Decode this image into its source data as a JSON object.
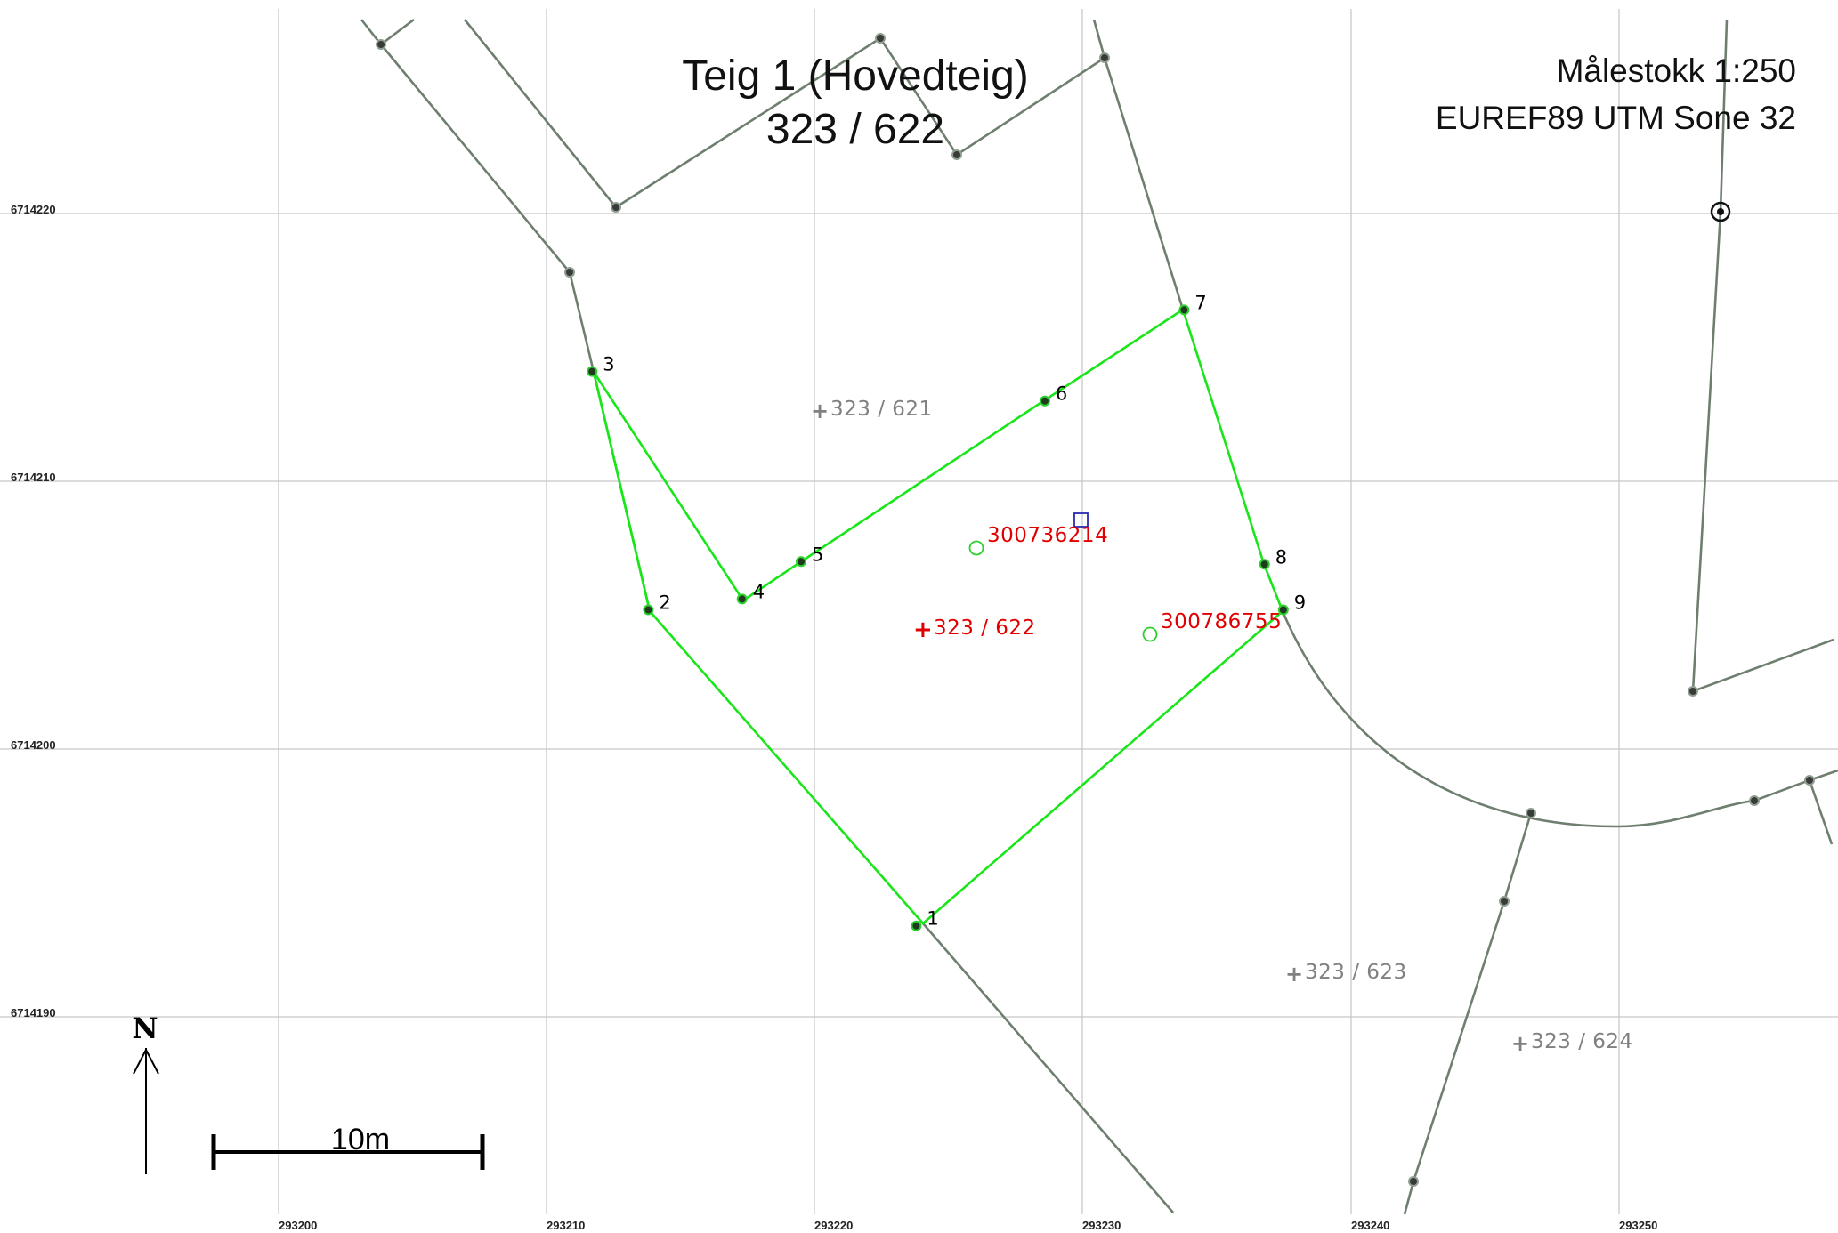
{
  "map": {
    "title": "Teig 1 (Hovedteig)",
    "subtitle": "323 / 622",
    "scale": "Målestokk 1:250",
    "projection": "EUREF89 UTM Sone 32",
    "north_label": "N",
    "scale_bar_label": "10m",
    "x_ticks": [
      "293200",
      "293210",
      "293220",
      "293230",
      "293240",
      "293250"
    ],
    "y_ticks": [
      "6714220",
      "6714210",
      "6714200",
      "6714190"
    ],
    "parcel_points": [
      {
        "label": "1",
        "x": 293223.8,
        "y": 6714193.4
      },
      {
        "label": "2",
        "x": 293213.8,
        "y": 6714205.2
      },
      {
        "label": "3",
        "x": 293211.7,
        "y": 6714214.1
      },
      {
        "label": "4",
        "x": 293217.3,
        "y": 6714205.6
      },
      {
        "label": "5",
        "x": 293219.5,
        "y": 6714207.0
      },
      {
        "label": "6",
        "x": 293228.6,
        "y": 6714213.0
      },
      {
        "label": "7",
        "x": 293233.8,
        "y": 6714216.4
      },
      {
        "label": "8",
        "x": 293236.8,
        "y": 6714206.9
      },
      {
        "label": "9",
        "x": 293237.5,
        "y": 6714205.2
      }
    ],
    "parcel_refs": [
      {
        "text": "323 / 621",
        "main": false
      },
      {
        "text": "323 / 622",
        "main": true
      },
      {
        "text": "323 / 623",
        "main": false
      },
      {
        "text": "323 / 624",
        "main": false
      }
    ],
    "buildings": [
      "300736214",
      "300786755"
    ],
    "colors": {
      "parcel_boundary": "#19e619",
      "neighbor_boundary": "#6f7f6f",
      "main_label": "#e00000",
      "neighbor_label": "#808080",
      "grid": "#c8c8c8"
    }
  }
}
